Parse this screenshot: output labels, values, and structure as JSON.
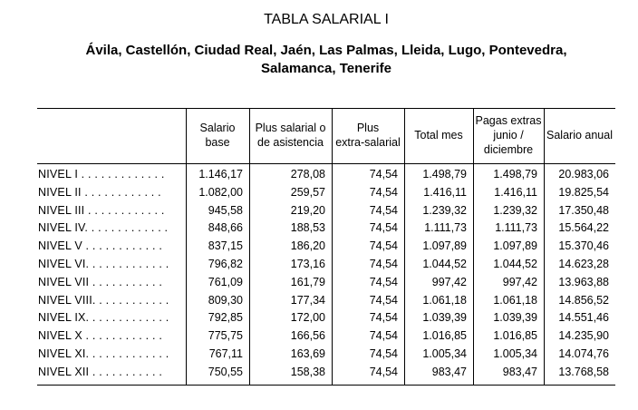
{
  "title": "TABLA SALARIAL I",
  "subtitle": {
    "line1": "Ávila, Castellón, Ciudad Real, Jaén, Las Palmas, Lleida, Lugo, Pontevedra,",
    "line2": "Salamanca, Tenerife"
  },
  "table": {
    "columns": [
      "Salario base",
      "Plus salarial o de asistencia",
      "Plus extra-salarial",
      "Total mes",
      "Pagas extras junio / diciembre",
      "Salario anual"
    ],
    "header_lines": [
      [
        "Salario",
        "base"
      ],
      [
        "Plus salarial o",
        "de asistencia"
      ],
      [
        "Plus",
        "extra-salarial"
      ],
      [
        "Total mes"
      ],
      [
        "Pagas extras",
        "junio /",
        "diciembre"
      ],
      [
        "Salario anual"
      ]
    ],
    "rows": [
      {
        "label": "NIVEL I . . . . . . . . . . . . .",
        "values": [
          "1.146,17",
          "278,08",
          "74,54",
          "1.498,79",
          "1.498,79",
          "20.983,06"
        ]
      },
      {
        "label": "NIVEL II  . . . . . . . . . . . .",
        "values": [
          "1.082,00",
          "259,57",
          "74,54",
          "1.416,11",
          "1.416,11",
          "19.825,54"
        ]
      },
      {
        "label": "NIVEL III . . . . . . . . . . . .",
        "values": [
          "945,58",
          "219,20",
          "74,54",
          "1.239,32",
          "1.239,32",
          "17.350,48"
        ]
      },
      {
        "label": "NIVEL IV. . . . . . . . . . . . .",
        "values": [
          "848,66",
          "188,53",
          "74,54",
          "1.111,73",
          "1.111,73",
          "15.564,22"
        ]
      },
      {
        "label": "NIVEL V  . . . . . . . . . . . .",
        "values": [
          "837,15",
          "186,20",
          "74,54",
          "1.097,89",
          "1.097,89",
          "15.370,46"
        ]
      },
      {
        "label": "NIVEL VI. . . . . . . . . . . . .",
        "values": [
          "796,82",
          "173,16",
          "74,54",
          "1.044,52",
          "1.044,52",
          "14.623,28"
        ]
      },
      {
        "label": "NIVEL VII  . . . . . . . . . . .",
        "values": [
          "761,09",
          "161,79",
          "74,54",
          "997,42",
          "997,42",
          "13.963,88"
        ]
      },
      {
        "label": "NIVEL VIII. . . . . . . . . . . .",
        "values": [
          "809,30",
          "177,34",
          "74,54",
          "1.061,18",
          "1.061,18",
          "14.856,52"
        ]
      },
      {
        "label": "NIVEL IX. . . . . . . . . . . . .",
        "values": [
          "792,85",
          "172,00",
          "74,54",
          "1.039,39",
          "1.039,39",
          "14.551,46"
        ]
      },
      {
        "label": "NIVEL X  . . . . . . . . . . . .",
        "values": [
          "775,75",
          "166,56",
          "74,54",
          "1.016,85",
          "1.016,85",
          "14.235,90"
        ]
      },
      {
        "label": "NIVEL XI. . . . . . . . . . . . .",
        "values": [
          "767,11",
          "163,69",
          "74,54",
          "1.005,34",
          "1.005,34",
          "14.074,76"
        ]
      },
      {
        "label": "NIVEL XII  . . . . . . . . . . .",
        "values": [
          "750,55",
          "158,38",
          "74,54",
          "983,47",
          "983,47",
          "13.768,58"
        ]
      }
    ]
  }
}
